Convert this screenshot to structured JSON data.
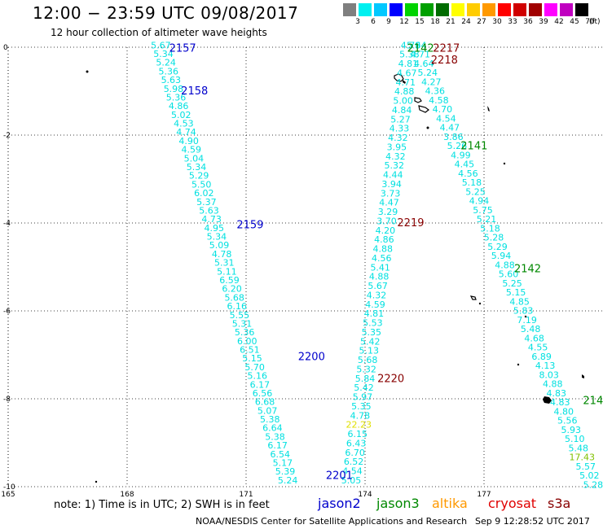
{
  "header": {
    "title": "12:00 − 23:59 UTC 09/08/2017",
    "subtitle": "12 hour collection of altimeter wave heights"
  },
  "scale": {
    "ticks": [
      {
        "label": "3",
        "color": "#7f7f7f"
      },
      {
        "label": "6",
        "color": "#00f0f0"
      },
      {
        "label": "9",
        "color": "#00c8ff"
      },
      {
        "label": "12",
        "color": "#0000ff"
      },
      {
        "label": "15",
        "color": "#00d300"
      },
      {
        "label": "18",
        "color": "#00a000"
      },
      {
        "label": "21",
        "color": "#006c00"
      },
      {
        "label": "24",
        "color": "#ffff00"
      },
      {
        "label": "27",
        "color": "#ffcc00"
      },
      {
        "label": "30",
        "color": "#ff9900"
      },
      {
        "label": "33",
        "color": "#ff0000"
      },
      {
        "label": "36",
        "color": "#d00000"
      },
      {
        "label": "39",
        "color": "#a00000"
      },
      {
        "label": "42",
        "color": "#ff00ff"
      },
      {
        "label": "45",
        "color": "#c000c0"
      },
      {
        "label": "70",
        "color": "#000000"
      }
    ],
    "unit": "(ft)"
  },
  "axes": {
    "x_ticks": [
      {
        "label": "165",
        "value": 165
      },
      {
        "label": "168",
        "value": 168
      },
      {
        "label": "171",
        "value": 171
      },
      {
        "label": "174",
        "value": 174
      },
      {
        "label": "177",
        "value": 177
      }
    ],
    "y_ticks": [
      {
        "label": "0",
        "value": 0
      },
      {
        "label": "-2",
        "value": -2
      },
      {
        "label": "-4",
        "value": -4
      },
      {
        "label": "-6",
        "value": -6
      },
      {
        "label": "-8",
        "value": -8
      },
      {
        "label": "-10",
        "value": -10
      }
    ],
    "x_range": [
      165,
      180
    ],
    "y_range": [
      -10,
      0
    ]
  },
  "colors": {
    "track": "#00e0e0",
    "jason2": "#0000cc",
    "jason3": "#008800",
    "altika": "#ff9900",
    "cryosat": "#e00000",
    "s3a": "#880000",
    "yellow": "#e0e000",
    "green_val": "#80c000"
  },
  "tracks": [
    {
      "id": "jason2-a",
      "lon_start": 168.85,
      "lat_start": 0.05,
      "lon_end": 172.05,
      "lat_end": -9.85,
      "values": [
        "5.67",
        "5.34",
        "5.24",
        "5.36",
        "5.63",
        "5.98",
        "5.36",
        "4.86",
        "5.02",
        "4.53",
        "4.74",
        "4.90",
        "4.59",
        "5.04",
        "5.34",
        "5.29",
        "5.50",
        "6.02",
        "5.37",
        "5.63",
        "4.73",
        "4.95",
        "5.34",
        "5.09",
        "4.78",
        "5.31",
        "5.11",
        "6.59",
        "6.20",
        "5.68",
        "6.16",
        "5.55",
        "5.31",
        "5.36",
        "6.00",
        "6.51",
        "5.15",
        "5.70",
        "5.16",
        "6.17",
        "6.56",
        "6.68",
        "5.07",
        "5.38",
        "6.64",
        "5.38",
        "6.17",
        "6.54",
        "5.17",
        "5.39",
        "5.24"
      ]
    },
    {
      "id": "jason3-a",
      "lon_start": 173.65,
      "lat_start": -9.85,
      "lon_end": 175.15,
      "lat_end": 0.05,
      "values": [
        "5.05",
        "4.54",
        "6.52",
        "6.70",
        "6.43",
        "6.15",
        "22.23",
        "4.78",
        "5.35",
        "5.97",
        "5.42",
        "5.84",
        "5.32",
        "5.68",
        "5.13",
        "5.42",
        "5.35",
        "5.53",
        "4.81",
        "4.59",
        "4.32",
        "5.67",
        "4.88",
        "5.41",
        "4.56",
        "4.88",
        "4.86",
        "4.20",
        "3.70",
        "3.29",
        "4.47",
        "3.73",
        "3.94",
        "4.44",
        "5.32",
        "4.32",
        "3.95",
        "4.32",
        "4.33",
        "5.27",
        "4.84",
        "5.00",
        "4.88",
        "4.71",
        "4.67",
        "4.81",
        "5.38",
        "4.79"
      ]
    },
    {
      "id": "s3a-a",
      "lon_start": 175.3,
      "lat_start": 0.05,
      "lon_end": 179.75,
      "lat_end": -9.95,
      "values": [
        "5.64",
        "4.71",
        "4.64",
        "5.24",
        "4.27",
        "4.36",
        "4.58",
        "4.70",
        "4.54",
        "4.47",
        "3.86",
        "5.26",
        "4.99",
        "4.45",
        "4.56",
        "5.18",
        "5.25",
        "4.94",
        "5.75",
        "5.21",
        "5.18",
        "5.28",
        "5.29",
        "5.94",
        "4.88",
        "5.60",
        "5.25",
        "5.15",
        "4.85",
        "5.83",
        "7.19",
        "5.48",
        "4.68",
        "4.55",
        "6.89",
        "4.13",
        "8.03",
        "4.88",
        "4.83",
        "4.83",
        "4.80",
        "5.56",
        "5.93",
        "5.10",
        "5.48",
        "17.43",
        "5.57",
        "5.02",
        "5.28"
      ]
    }
  ],
  "special_values": {
    "22.23": "yellow",
    "17.43": "green_val"
  },
  "pass_labels": [
    {
      "text": "2157",
      "lon": 169.4,
      "lat": -0.03,
      "sat": "jason2"
    },
    {
      "text": "2158",
      "lon": 169.7,
      "lat": -1.0,
      "sat": "jason2"
    },
    {
      "text": "2159",
      "lon": 171.1,
      "lat": -4.05,
      "sat": "jason2"
    },
    {
      "text": "2200",
      "lon": 172.65,
      "lat": -7.05,
      "sat": "jason2"
    },
    {
      "text": "2201",
      "lon": 173.35,
      "lat": -9.75,
      "sat": "jason2"
    },
    {
      "text": "2142",
      "lon": 175.4,
      "lat": -0.03,
      "sat": "jason3"
    },
    {
      "text": "2141",
      "lon": 176.75,
      "lat": -2.25,
      "sat": "jason3"
    },
    {
      "text": "2142",
      "lon": 178.1,
      "lat": -5.05,
      "sat": "jason3"
    },
    {
      "text": "214",
      "lon": 179.75,
      "lat": -8.05,
      "sat": "jason3"
    },
    {
      "text": "2217",
      "lon": 176.05,
      "lat": -0.03,
      "sat": "s3a"
    },
    {
      "text": "2218",
      "lon": 176.0,
      "lat": -0.3,
      "sat": "s3a"
    },
    {
      "text": "2219",
      "lon": 175.15,
      "lat": -4.0,
      "sat": "s3a"
    },
    {
      "text": "2220",
      "lon": 174.65,
      "lat": -7.55,
      "sat": "s3a"
    }
  ],
  "note": "note: 1) Time is in UTC; 2) SWH is in feet",
  "legend": [
    {
      "label": "jason2",
      "color": "#0000cc"
    },
    {
      "label": "jason3",
      "color": "#008800"
    },
    {
      "label": "altika",
      "color": "#ff9900"
    },
    {
      "label": "cryosat",
      "color": "#e00000"
    },
    {
      "label": "s3a",
      "color": "#880000"
    }
  ],
  "footer": "NOAA/NESDIS Center for Satellite Applications and Research",
  "timestamp": "Sep  9 12:28:52 UTC 2017"
}
